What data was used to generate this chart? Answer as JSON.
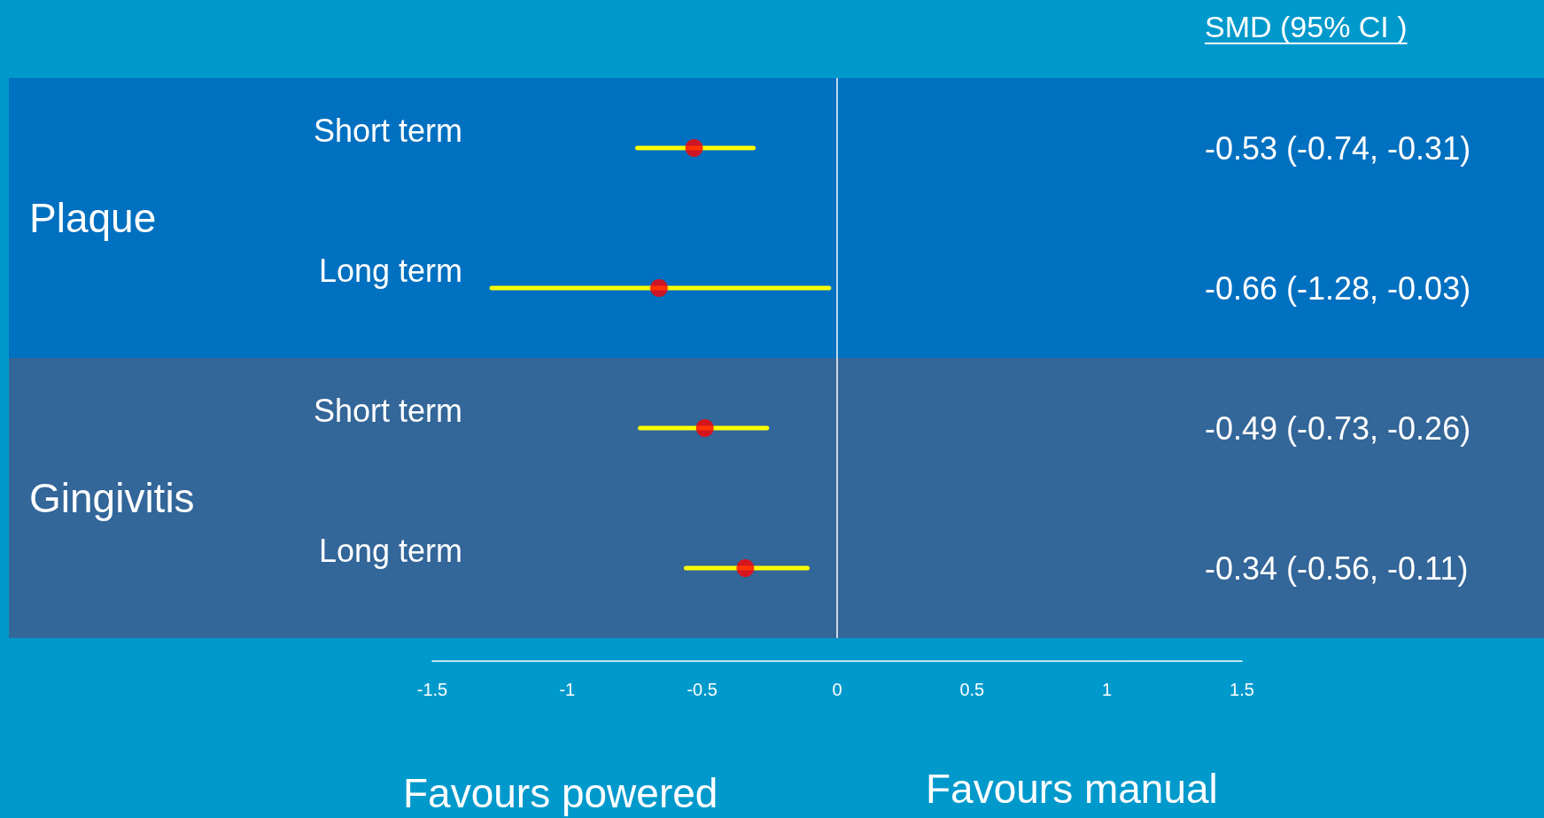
{
  "chart_data": {
    "type": "scatter",
    "categories": [
      "Short term",
      "Long term",
      "Short term",
      "Long term"
    ],
    "series": [
      {
        "color": "#ff0000",
        "values": [
          -0.53,
          -0.66,
          -0.49,
          -0.34
        ],
        "errors": [
          [
            -0.74,
            -0.31
          ],
          [
            -1.28,
            -0.03
          ],
          [
            -0.73,
            -0.26
          ],
          [
            -0.56,
            -0.11
          ]
        ],
        "value_labels": [
          "-0.53 (-0.74, -0.31)",
          "-0.66 (-1.28, -0.03)",
          "-0.49 (-0.73, -0.26)",
          "-0.34 (-0.56, -0.11)"
        ]
      }
    ],
    "xlim": [
      -1.5,
      1.5
    ],
    "xticks": [
      -1.5,
      -1,
      -0.5,
      0,
      0.5,
      1,
      1.5
    ],
    "ref_lines": [
      {
        "axis": "x",
        "value": 0,
        "color": "#ffffff"
      }
    ],
    "annotations": [
      "SMD (95% CI )",
      "Favours powered",
      "Favours manual",
      "Plaque",
      "Gingivitis"
    ],
    "marker": "circle",
    "orientation": "horizontal"
  }
}
